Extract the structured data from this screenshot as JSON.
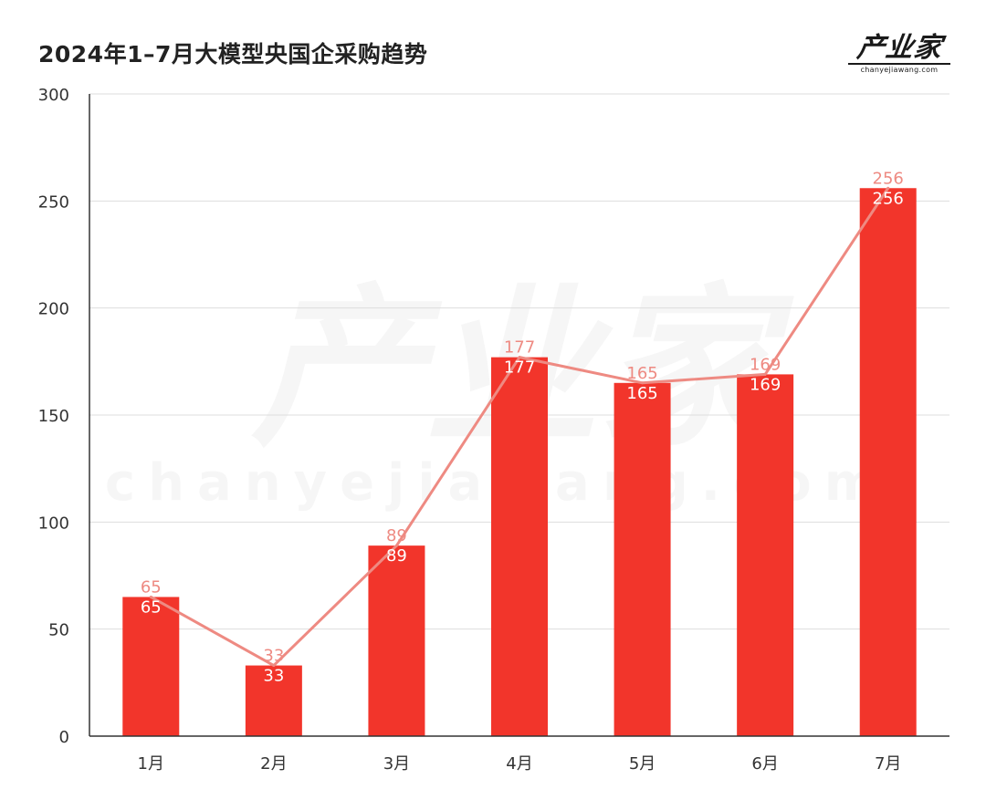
{
  "header": {
    "title": "2024年1–7月大模型央国企采购趋势",
    "logo_text": "产业家",
    "logo_subtext": "chanyejiawang.com"
  },
  "watermark": {
    "main": "产业家",
    "sub": "chanyejiawang.com"
  },
  "colors": {
    "bar": "#f2352b",
    "line": "#ee8a82",
    "grid": "#dddddd",
    "axis": "#333333"
  },
  "chart_data": {
    "type": "bar",
    "categories": [
      "1月",
      "2月",
      "3月",
      "4月",
      "5月",
      "6月",
      "7月"
    ],
    "series": [
      {
        "type": "bar",
        "values": [
          65,
          33,
          89,
          177,
          165,
          169,
          256
        ]
      },
      {
        "type": "line",
        "values": [
          65,
          33,
          89,
          177,
          165,
          169,
          256
        ]
      }
    ],
    "title": "2024年1–7月大模型央国企采购趋势",
    "xlabel": "",
    "ylabel": "",
    "ylim": [
      0,
      300
    ],
    "yticks": [
      0,
      50,
      100,
      150,
      200,
      250,
      300
    ],
    "grid": true,
    "legend": "none"
  }
}
